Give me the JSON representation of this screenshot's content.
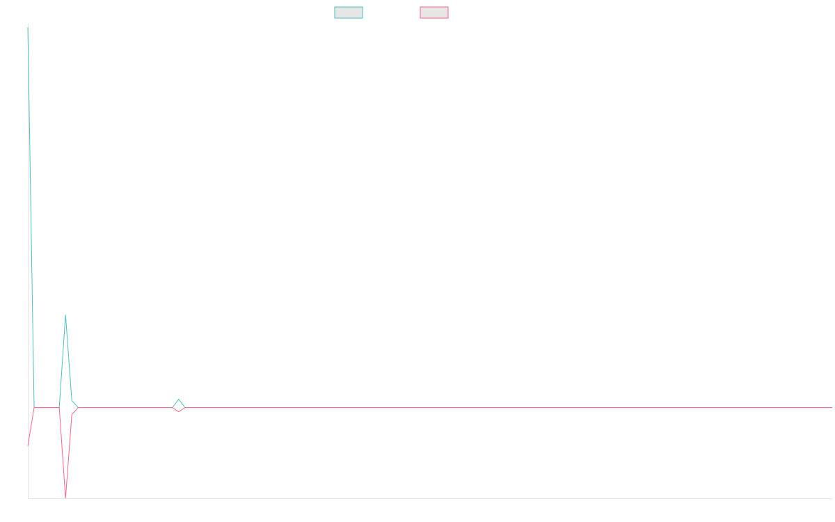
{
  "chart_data": {
    "type": "line",
    "title": "",
    "xlabel": "",
    "ylabel": "",
    "x": [
      0,
      1,
      2,
      3,
      4,
      5,
      6,
      7,
      8,
      9,
      10,
      11,
      12,
      13,
      14,
      15,
      16,
      17,
      18,
      19,
      20,
      21,
      22,
      23,
      24,
      25,
      26,
      27,
      28,
      29,
      30,
      31,
      32,
      33,
      34,
      35,
      36,
      37,
      38,
      39,
      40,
      41,
      42,
      43,
      44,
      45,
      46,
      47,
      48,
      49,
      50,
      51,
      52,
      53,
      54,
      55,
      56,
      57,
      58,
      59,
      60,
      61,
      62,
      63,
      64,
      65,
      66,
      67,
      68,
      69,
      70,
      71,
      72,
      73,
      74,
      75,
      76,
      77,
      78,
      79,
      80,
      81,
      82,
      83,
      84,
      85,
      86,
      87,
      88,
      89,
      90,
      91,
      92,
      93,
      94,
      95,
      96,
      97,
      98,
      99,
      100,
      101,
      102,
      103,
      104,
      105,
      106,
      107,
      108,
      109,
      110,
      111,
      112,
      113,
      114,
      115,
      116,
      117,
      118,
      119,
      120,
      121,
      122,
      123,
      124,
      125,
      126,
      127,
      128
    ],
    "ylim": [
      -130,
      550
    ],
    "xlim": [
      0,
      128
    ],
    "grid": false,
    "legend": "top-center",
    "series": [
      {
        "name": "",
        "color": "#4bc0c0",
        "values": [
          545,
          0,
          0,
          0,
          0,
          0,
          133,
          10,
          0,
          0,
          0,
          0,
          0,
          0,
          0,
          0,
          0,
          0,
          0,
          0,
          0,
          0,
          0,
          0,
          12,
          0,
          0,
          0,
          0,
          0,
          0,
          0,
          0,
          0,
          0,
          0,
          0,
          0,
          0,
          0,
          0,
          0,
          0,
          0,
          0,
          0,
          0,
          0,
          0,
          0,
          0,
          0,
          0,
          0,
          0,
          0,
          0,
          0,
          0,
          0,
          0,
          0,
          0,
          0,
          0,
          0,
          0,
          0,
          0,
          0,
          0,
          0,
          0,
          0,
          0,
          0,
          0,
          0,
          0,
          0,
          0,
          0,
          0,
          0,
          0,
          0,
          0,
          0,
          0,
          0,
          0,
          0,
          0,
          0,
          0,
          0,
          0,
          0,
          0,
          0,
          0,
          0,
          0,
          0,
          0,
          0,
          0,
          0,
          0,
          0,
          0,
          0,
          0,
          0,
          0,
          0,
          0,
          0,
          0,
          0,
          0,
          0,
          0,
          0,
          0,
          0,
          0,
          0,
          0
        ]
      },
      {
        "name": "",
        "color": "#ff6384",
        "values": [
          -55,
          0,
          0,
          0,
          0,
          0,
          -130,
          -10,
          0,
          0,
          0,
          0,
          0,
          0,
          0,
          0,
          0,
          0,
          0,
          0,
          0,
          0,
          0,
          0,
          -6,
          0,
          0,
          0,
          0,
          0,
          0,
          0,
          0,
          0,
          0,
          0,
          0,
          0,
          0,
          0,
          0,
          0,
          0,
          0,
          0,
          0,
          0,
          0,
          0,
          0,
          0,
          0,
          0,
          0,
          0,
          0,
          0,
          0,
          0,
          0,
          0,
          0,
          0,
          0,
          0,
          0,
          0,
          0,
          0,
          0,
          0,
          0,
          0,
          0,
          0,
          0,
          0,
          0,
          0,
          0,
          0,
          0,
          0,
          0,
          0,
          0,
          0,
          0,
          0,
          0,
          0,
          0,
          0,
          0,
          0,
          0,
          0,
          0,
          0,
          0,
          0,
          0,
          0,
          0,
          0,
          0,
          0,
          0,
          0,
          0,
          0,
          0,
          0,
          0,
          0,
          0,
          0,
          0,
          0,
          0,
          0,
          0,
          0,
          0,
          0,
          0,
          0,
          0,
          0
        ]
      }
    ]
  }
}
